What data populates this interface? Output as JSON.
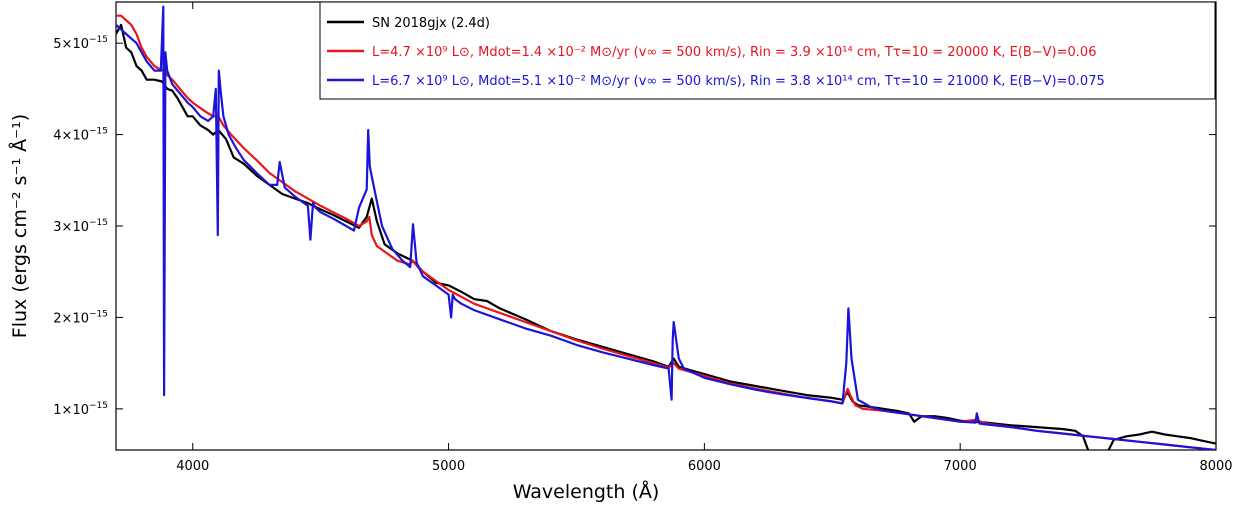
{
  "chart_data": {
    "type": "line",
    "xlabel": "Wavelength (Å)",
    "ylabel": "Flux (ergs cm⁻² s⁻¹ Å⁻¹)",
    "xlim": [
      3700,
      8000
    ],
    "ylim": [
      5.5e-16,
      5.45e-15
    ],
    "x_ticks": [
      4000,
      5000,
      6000,
      7000,
      8000
    ],
    "x_tick_labels": [
      "4000",
      "5000",
      "6000",
      "7000",
      "8000"
    ],
    "y_ticks": [
      1e-15,
      2e-15,
      3e-15,
      4e-15,
      5e-15
    ],
    "y_tick_labels": [
      "1×10",
      "2×10",
      "3×10",
      "4×10",
      "5×10"
    ],
    "y_tick_exponent": "−15",
    "grid": false,
    "legend_position": "top-right",
    "series": [
      {
        "name": "SN 2018gjx (2.4d)",
        "color": "#000000",
        "x": [
          3700,
          3720,
          3740,
          3760,
          3780,
          3800,
          3820,
          3850,
          3880,
          3900,
          3920,
          3940,
          3960,
          3980,
          4000,
          4030,
          4060,
          4080,
          4100,
          4130,
          4160,
          4200,
          4250,
          4300,
          4350,
          4400,
          4450,
          4500,
          4550,
          4600,
          4650,
          4680,
          4700,
          4720,
          4750,
          4800,
          4860,
          4900,
          4950,
          5000,
          5050,
          5100,
          5150,
          5200,
          5300,
          5400,
          5500,
          5600,
          5700,
          5800,
          5860,
          5880,
          5900,
          5950,
          6000,
          6100,
          6200,
          6300,
          6400,
          6500,
          6540,
          6560,
          6580,
          6600,
          6650,
          6700,
          6750,
          6800,
          6820,
          6850,
          6900,
          6950,
          7000,
          7050,
          7100,
          7200,
          7300,
          7350,
          7400,
          7450,
          7480,
          7500,
          7520,
          7540,
          7560,
          7580,
          7600,
          7650,
          7700,
          7750,
          7800,
          7850,
          7900,
          7950,
          8000
        ],
        "y": [
          5.1e-15,
          5.2e-15,
          4.95e-15,
          4.9e-15,
          4.75e-15,
          4.7e-15,
          4.6e-15,
          4.6e-15,
          4.58e-15,
          4.5e-15,
          4.48e-15,
          4.4e-15,
          4.3e-15,
          4.2e-15,
          4.2e-15,
          4.1e-15,
          4.05e-15,
          4e-15,
          4.05e-15,
          3.95e-15,
          3.75e-15,
          3.68e-15,
          3.55e-15,
          3.45e-15,
          3.35e-15,
          3.3e-15,
          3.25e-15,
          3.18e-15,
          3.12e-15,
          3.05e-15,
          2.98e-15,
          3.1e-15,
          3.3e-15,
          3.05e-15,
          2.8e-15,
          2.7e-15,
          2.62e-15,
          2.5e-15,
          2.38e-15,
          2.35e-15,
          2.28e-15,
          2.2e-15,
          2.18e-15,
          2.1e-15,
          1.98e-15,
          1.85e-15,
          1.76e-15,
          1.68e-15,
          1.6e-15,
          1.52e-15,
          1.46e-15,
          1.55e-15,
          1.46e-15,
          1.42e-15,
          1.38e-15,
          1.3e-15,
          1.25e-15,
          1.2e-15,
          1.15e-15,
          1.12e-15,
          1.1e-15,
          1.18e-15,
          1.08e-15,
          1.04e-15,
          1.02e-15,
          1e-15,
          9.8e-16,
          9.5e-16,
          8.6e-16,
          9.2e-16,
          9.2e-16,
          9e-16,
          8.7e-16,
          8.6e-16,
          8.5e-16,
          8.2e-16,
          8e-16,
          7.9e-16,
          7.8e-16,
          7.6e-16,
          7e-16,
          5.5e-16,
          5e-16,
          5e-16,
          5e-16,
          5.5e-16,
          6.6e-16,
          7e-16,
          7.2e-16,
          7.5e-16,
          7.2e-16,
          7e-16,
          6.8e-16,
          6.5e-16,
          6.2e-16
        ]
      },
      {
        "name": "L=4.7 ×10⁹ L⊙, Mdot=1.4 ×10⁻² M⊙/yr (v∞ = 500 km/s), Rin = 3.9 ×10¹⁴ cm, Tτ=10 = 20000 K, E(B−V)=0.06",
        "color": "#e8141e",
        "x": [
          3700,
          3720,
          3740,
          3760,
          3780,
          3800,
          3820,
          3850,
          3880,
          3890,
          3900,
          3920,
          3950,
          3980,
          4000,
          4050,
          4080,
          4100,
          4120,
          4150,
          4200,
          4250,
          4300,
          4350,
          4400,
          4450,
          4500,
          4550,
          4600,
          4650,
          4680,
          4690,
          4700,
          4720,
          4750,
          4800,
          4850,
          4860,
          4880,
          4900,
          4950,
          5000,
          5100,
          5200,
          5300,
          5400,
          5500,
          5600,
          5700,
          5800,
          5860,
          5880,
          5900,
          6000,
          6100,
          6200,
          6300,
          6400,
          6500,
          6540,
          6560,
          6570,
          6590,
          6620,
          6700,
          6800,
          6900,
          7000,
          7060,
          7100,
          7200,
          7300,
          7400,
          7500,
          7600,
          7700,
          7800,
          7900,
          8000
        ],
        "y": [
          5.3e-15,
          5.3e-15,
          5.25e-15,
          5.2e-15,
          5.1e-15,
          4.95e-15,
          4.85e-15,
          4.75e-15,
          4.7e-15,
          4.72e-15,
          4.65e-15,
          4.6e-15,
          4.5e-15,
          4.4e-15,
          4.35e-15,
          4.25e-15,
          4.2e-15,
          4.2e-15,
          4.1e-15,
          4e-15,
          3.85e-15,
          3.72e-15,
          3.58e-15,
          3.48e-15,
          3.38e-15,
          3.3e-15,
          3.22e-15,
          3.15e-15,
          3.08e-15,
          3e-15,
          3.05e-15,
          3.1e-15,
          2.9e-15,
          2.78e-15,
          2.72e-15,
          2.62e-15,
          2.58e-15,
          2.62e-15,
          2.55e-15,
          2.5e-15,
          2.4e-15,
          2.3e-15,
          2.15e-15,
          2.05e-15,
          1.95e-15,
          1.85e-15,
          1.75e-15,
          1.66e-15,
          1.58e-15,
          1.5e-15,
          1.45e-15,
          1.5e-15,
          1.44e-15,
          1.36e-15,
          1.28e-15,
          1.22e-15,
          1.17e-15,
          1.12e-15,
          1.08e-15,
          1.06e-15,
          1.22e-15,
          1.15e-15,
          1.04e-15,
          1e-15,
          9.8e-16,
          9.4e-16,
          9e-16,
          8.6e-16,
          8.8e-16,
          8.4e-16,
          8e-16,
          7.6e-16,
          7.3e-16,
          7e-16,
          6.7e-16,
          6.4e-16,
          6.1e-16,
          5.8e-16,
          5.5e-16
        ]
      },
      {
        "name": "L=6.7 ×10⁹ L⊙, Mdot=5.1 ×10⁻² M⊙/yr (v∞ = 500 km/s), Rin = 3.8 ×10¹⁴ cm, Tτ=10 = 21000 K, E(B−V)=0.075",
        "color": "#1c15d8",
        "x": [
          3700,
          3720,
          3740,
          3760,
          3780,
          3800,
          3820,
          3850,
          3875,
          3885,
          3888,
          3893,
          3900,
          3920,
          3950,
          3980,
          4000,
          4030,
          4060,
          4080,
          4090,
          4098,
          4102,
          4110,
          4120,
          4140,
          4170,
          4200,
          4250,
          4300,
          4330,
          4340,
          4360,
          4400,
          4450,
          4460,
          4470,
          4480,
          4500,
          4550,
          4600,
          4630,
          4650,
          4680,
          4686,
          4692,
          4710,
          4740,
          4780,
          4820,
          4850,
          4861,
          4875,
          4900,
          4950,
          5000,
          5010,
          5016,
          5025,
          5050,
          5100,
          5200,
          5300,
          5400,
          5500,
          5600,
          5700,
          5800,
          5860,
          5872,
          5876,
          5880,
          5900,
          5920,
          6000,
          6100,
          6200,
          6300,
          6400,
          6500,
          6540,
          6555,
          6563,
          6575,
          6600,
          6650,
          6700,
          6800,
          6900,
          7000,
          7060,
          7065,
          7075,
          7100,
          7200,
          7300,
          7400,
          7500,
          7600,
          7700,
          7800,
          7900,
          8000
        ],
        "y": [
          5.2e-15,
          5.15e-15,
          5.1e-15,
          5.05e-15,
          5e-15,
          4.9e-15,
          4.8e-15,
          4.7e-15,
          4.7e-15,
          5.4e-15,
          1.15e-15,
          4.9e-15,
          4.7e-15,
          4.55e-15,
          4.45e-15,
          4.35e-15,
          4.3e-15,
          4.2e-15,
          4.15e-15,
          4.2e-15,
          4.5e-15,
          2.9e-15,
          4.7e-15,
          4.45e-15,
          4.2e-15,
          4e-15,
          3.85e-15,
          3.72e-15,
          3.58e-15,
          3.45e-15,
          3.45e-15,
          3.7e-15,
          3.42e-15,
          3.32e-15,
          3.22e-15,
          2.85e-15,
          3.25e-15,
          3.2e-15,
          3.15e-15,
          3.08e-15,
          3e-15,
          2.95e-15,
          3.2e-15,
          3.4e-15,
          4.05e-15,
          3.65e-15,
          3.4e-15,
          3e-15,
          2.75e-15,
          2.62e-15,
          2.55e-15,
          3.02e-15,
          2.6e-15,
          2.45e-15,
          2.35e-15,
          2.25e-15,
          2e-15,
          2.25e-15,
          2.2e-15,
          2.15e-15,
          2.08e-15,
          1.98e-15,
          1.88e-15,
          1.8e-15,
          1.7e-15,
          1.62e-15,
          1.55e-15,
          1.48e-15,
          1.44e-15,
          1.1e-15,
          1.75e-15,
          1.95e-15,
          1.55e-15,
          1.44e-15,
          1.34e-15,
          1.27e-15,
          1.21e-15,
          1.16e-15,
          1.12e-15,
          1.08e-15,
          1.06e-15,
          1.5e-15,
          2.1e-15,
          1.55e-15,
          1.1e-15,
          1.02e-15,
          9.8e-16,
          9.4e-16,
          9e-16,
          8.6e-16,
          8.5e-16,
          9.5e-16,
          8.4e-16,
          8.3e-16,
          8e-16,
          7.6e-16,
          7.3e-16,
          7e-16,
          6.7e-16,
          6.4e-16,
          6.1e-16,
          5.8e-16,
          5.5e-16
        ]
      }
    ]
  }
}
